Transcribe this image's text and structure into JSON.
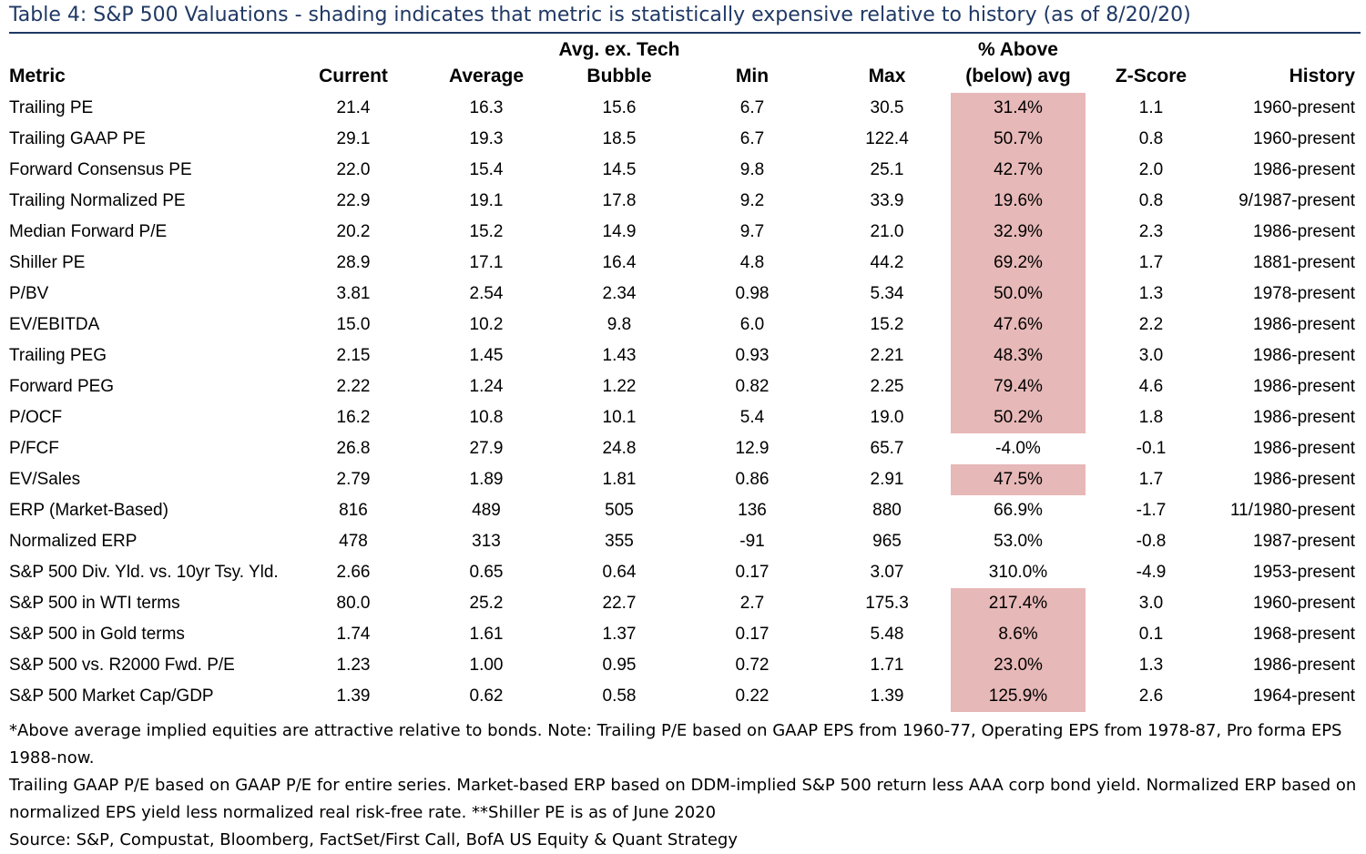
{
  "title": "Table 4: S&P 500 Valuations - shading indicates that metric is statistically expensive relative to history (as of 8/20/20)",
  "columns": {
    "metric": "Metric",
    "current": "Current",
    "average": "Average",
    "avg_ex_tech_line1": "Avg. ex. Tech",
    "avg_ex_tech_line2": "Bubble",
    "min": "Min",
    "max": "Max",
    "pct_line1": "% Above",
    "pct_line2": "(below) avg",
    "zscore": "Z-Score",
    "history": "History"
  },
  "shade_color": "#e6b8b7",
  "rows": [
    {
      "metric": "Trailing PE",
      "current": "21.4",
      "average": "16.3",
      "avg_ex_tech": "15.6",
      "min": "6.7",
      "max": "30.5",
      "pct": "31.4%",
      "z": "1.1",
      "history": "1960-present",
      "shaded": true
    },
    {
      "metric": "Trailing GAAP PE",
      "current": "29.1",
      "average": "19.3",
      "avg_ex_tech": "18.5",
      "min": "6.7",
      "max": "122.4",
      "pct": "50.7%",
      "z": "0.8",
      "history": "1960-present",
      "shaded": true
    },
    {
      "metric": "Forward Consensus PE",
      "current": "22.0",
      "average": "15.4",
      "avg_ex_tech": "14.5",
      "min": "9.8",
      "max": "25.1",
      "pct": "42.7%",
      "z": "2.0",
      "history": "1986-present",
      "shaded": true
    },
    {
      "metric": "Trailing Normalized PE",
      "current": "22.9",
      "average": "19.1",
      "avg_ex_tech": "17.8",
      "min": "9.2",
      "max": "33.9",
      "pct": "19.6%",
      "z": "0.8",
      "history": "9/1987-present",
      "shaded": true
    },
    {
      "metric": "Median Forward P/E",
      "current": "20.2",
      "average": "15.2",
      "avg_ex_tech": "14.9",
      "min": "9.7",
      "max": "21.0",
      "pct": "32.9%",
      "z": "2.3",
      "history": "1986-present",
      "shaded": true
    },
    {
      "metric": "Shiller PE",
      "current": "28.9",
      "average": "17.1",
      "avg_ex_tech": "16.4",
      "min": "4.8",
      "max": "44.2",
      "pct": "69.2%",
      "z": "1.7",
      "history": "1881-present",
      "shaded": true
    },
    {
      "metric": "P/BV",
      "current": "3.81",
      "average": "2.54",
      "avg_ex_tech": "2.34",
      "min": "0.98",
      "max": "5.34",
      "pct": "50.0%",
      "z": "1.3",
      "history": "1978-present",
      "shaded": true
    },
    {
      "metric": "EV/EBITDA",
      "current": "15.0",
      "average": "10.2",
      "avg_ex_tech": "9.8",
      "min": "6.0",
      "max": "15.2",
      "pct": "47.6%",
      "z": "2.2",
      "history": "1986-present",
      "shaded": true
    },
    {
      "metric": "Trailing PEG",
      "current": "2.15",
      "average": "1.45",
      "avg_ex_tech": "1.43",
      "min": "0.93",
      "max": "2.21",
      "pct": "48.3%",
      "z": "3.0",
      "history": "1986-present",
      "shaded": true
    },
    {
      "metric": "Forward PEG",
      "current": "2.22",
      "average": "1.24",
      "avg_ex_tech": "1.22",
      "min": "0.82",
      "max": "2.25",
      "pct": "79.4%",
      "z": "4.6",
      "history": "1986-present",
      "shaded": true
    },
    {
      "metric": "P/OCF",
      "current": "16.2",
      "average": "10.8",
      "avg_ex_tech": "10.1",
      "min": "5.4",
      "max": "19.0",
      "pct": "50.2%",
      "z": "1.8",
      "history": "1986-present",
      "shaded": true
    },
    {
      "metric": "P/FCF",
      "current": "26.8",
      "average": "27.9",
      "avg_ex_tech": "24.8",
      "min": "12.9",
      "max": "65.7",
      "pct": "-4.0%",
      "z": "-0.1",
      "history": "1986-present",
      "shaded": false
    },
    {
      "metric": "EV/Sales",
      "current": "2.79",
      "average": "1.89",
      "avg_ex_tech": "1.81",
      "min": "0.86",
      "max": "2.91",
      "pct": "47.5%",
      "z": "1.7",
      "history": "1986-present",
      "shaded": true
    },
    {
      "metric": "ERP (Market-Based)",
      "current": "816",
      "average": "489",
      "avg_ex_tech": "505",
      "min": "136",
      "max": "880",
      "pct": "66.9%",
      "z": "-1.7",
      "history": "11/1980-present",
      "shaded": false
    },
    {
      "metric": "Normalized ERP",
      "current": "478",
      "average": "313",
      "avg_ex_tech": "355",
      "min": "-91",
      "max": "965",
      "pct": "53.0%",
      "z": "-0.8",
      "history": "1987-present",
      "shaded": false
    },
    {
      "metric": "S&P 500 Div. Yld. vs. 10yr Tsy. Yld.",
      "current": "2.66",
      "average": "0.65",
      "avg_ex_tech": "0.64",
      "min": "0.17",
      "max": "3.07",
      "pct": "310.0%",
      "z": "-4.9",
      "history": "1953-present",
      "shaded": false
    },
    {
      "metric": "S&P 500 in WTI terms",
      "current": "80.0",
      "average": "25.2",
      "avg_ex_tech": "22.7",
      "min": "2.7",
      "max": "175.3",
      "pct": "217.4%",
      "z": "3.0",
      "history": "1960-present",
      "shaded": true
    },
    {
      "metric": "S&P 500 in Gold terms",
      "current": "1.74",
      "average": "1.61",
      "avg_ex_tech": "1.37",
      "min": "0.17",
      "max": "5.48",
      "pct": "8.6%",
      "z": "0.1",
      "history": "1968-present",
      "shaded": true
    },
    {
      "metric": "S&P 500 vs. R2000 Fwd. P/E",
      "current": "1.23",
      "average": "1.00",
      "avg_ex_tech": "0.95",
      "min": "0.72",
      "max": "1.71",
      "pct": "23.0%",
      "z": "1.3",
      "history": "1986-present",
      "shaded": true
    },
    {
      "metric": "S&P 500 Market Cap/GDP",
      "current": "1.39",
      "average": "0.62",
      "avg_ex_tech": "0.58",
      "min": "0.22",
      "max": "1.39",
      "pct": "125.9%",
      "z": "2.6",
      "history": "1964-present",
      "shaded": true
    }
  ],
  "footnotes": {
    "line1": "*Above average implied equities are attractive relative to bonds. Note: Trailing P/E based on GAAP EPS from 1960-77, Operating EPS from 1978-87, Pro forma EPS 1988-now.",
    "line2": "Trailing GAAP P/E based on GAAP P/E for entire series. Market-based ERP based on DDM-implied S&P 500 return less AAA corp bond yield. Normalized ERP based on",
    "line3": "normalized EPS yield less normalized real risk-free rate. **Shiller PE is as of June 2020",
    "source": "Source: S&P, Compustat, Bloomberg, FactSet/First Call, BofA US Equity & Quant Strategy"
  }
}
